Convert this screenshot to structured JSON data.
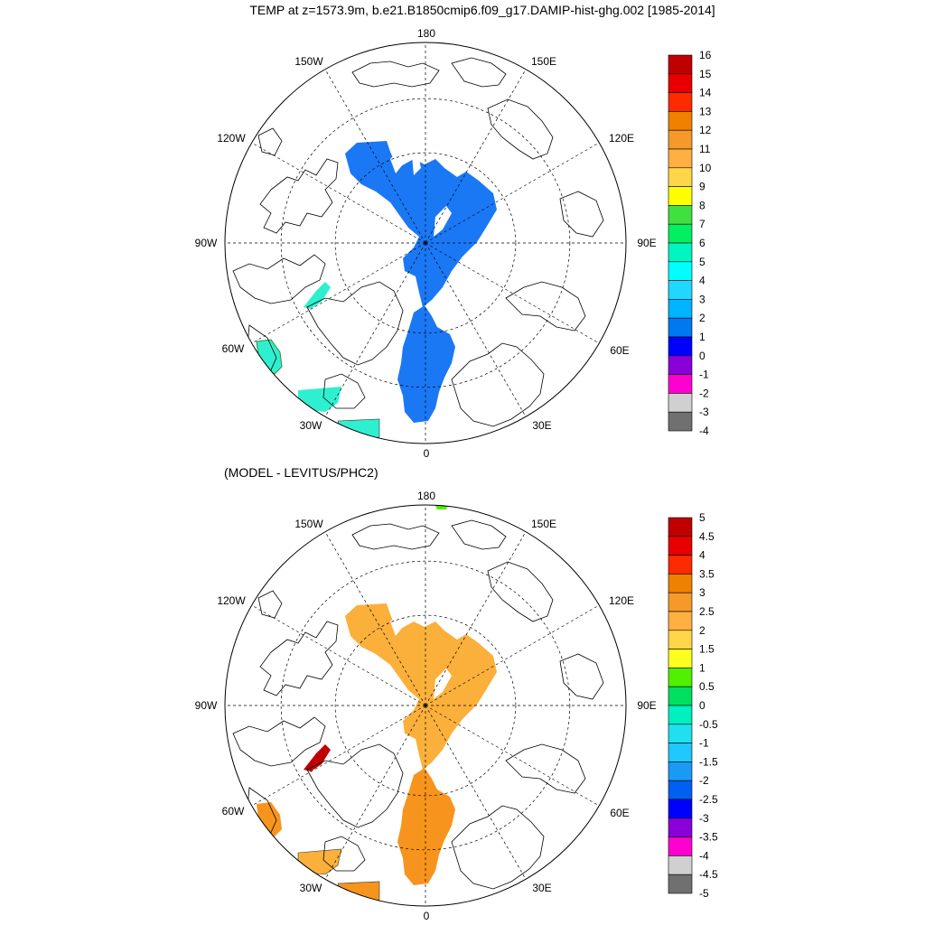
{
  "title": "TEMP at z=1573.9m, b.e21.B1850cmip6.f09_g17.DAMIP-hist-ghg.002 [1985-2014]",
  "subtitle": "(MODEL - LEVITUS/PHC2)",
  "longitude_labels": [
    "180",
    "150E",
    "120E",
    "90E",
    "60E",
    "30E",
    "0",
    "30W",
    "60W",
    "90W",
    "120W",
    "150W"
  ],
  "panels": [
    {
      "name": "model-temperature",
      "levels": [
        "16",
        "15",
        "14",
        "13",
        "12",
        "11",
        "10",
        "9",
        "8",
        "7",
        "6",
        "5",
        "4",
        "3",
        "2",
        "1",
        "0",
        "-1",
        "-2",
        "-3",
        "-4"
      ],
      "colors": [
        "#c00000",
        "#e80000",
        "#ff2a00",
        "#f08000",
        "#f59a2a",
        "#ffb040",
        "#ffd54a",
        "#ffff00",
        "#40e040",
        "#00f060",
        "#00f5c0",
        "#00ffff",
        "#20d8ff",
        "#00b4ff",
        "#0078f0",
        "#0000ff",
        "#8a00d8",
        "#ff00d0",
        "#d0d0d0",
        "#707070"
      ],
      "shaded_class_value_range": [
        "1",
        "2"
      ],
      "shaded_color": "#1a78f5",
      "secondary_color": "#2ef0d0"
    },
    {
      "name": "model-minus-levitus",
      "levels": [
        "5",
        "4.5",
        "4",
        "3.5",
        "3",
        "2.5",
        "2",
        "1.5",
        "1",
        "0.5",
        "0",
        "-0.5",
        "-1",
        "-1.5",
        "-2",
        "-2.5",
        "-3",
        "-3.5",
        "-4",
        "-4.5",
        "-5"
      ],
      "colors": [
        "#c00000",
        "#e80000",
        "#ff2a00",
        "#f08000",
        "#f59a2a",
        "#ffb040",
        "#ffd54a",
        "#ffff20",
        "#50f000",
        "#00e060",
        "#00f0c0",
        "#20e0f0",
        "#20c8ff",
        "#1a9af5",
        "#0060f0",
        "#0000ff",
        "#8a00d8",
        "#ff00d0",
        "#d0d0d0",
        "#707070"
      ],
      "shaded_class_value_range": [
        "2",
        "2.5"
      ],
      "shaded_color": "#fbb03b",
      "secondary_color": "#f7941d",
      "hot_spot_color": "#c00000"
    }
  ]
}
